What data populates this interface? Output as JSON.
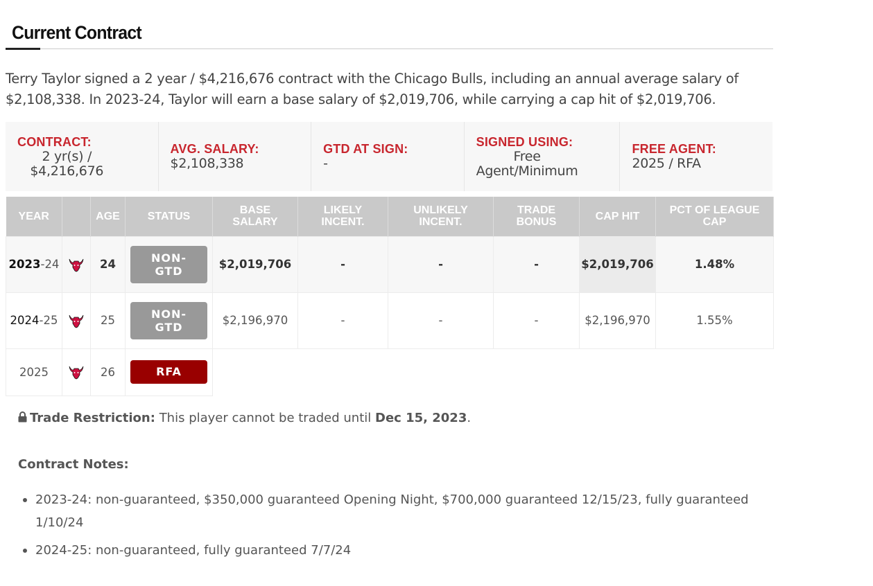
{
  "section": {
    "title": "Current Contract"
  },
  "summary": "Terry Taylor signed a 2 year / $4,216,676 contract with the Chicago Bulls, including an annual average salary of $2,108,338. In 2023-24, Taylor will earn a base salary of $2,019,706, while carrying a cap hit of $2,019,706.",
  "stats": {
    "contract": {
      "label": "CONTRACT:",
      "line1": "2 yr(s) /",
      "line2": "$4,216,676"
    },
    "avg_salary": {
      "label": "AVG. SALARY:",
      "value": "$2,108,338"
    },
    "gtd_at_sign": {
      "label": "GTD AT SIGN:",
      "value": "-"
    },
    "signed_using": {
      "label": "SIGNED USING:",
      "line1": "Free",
      "line2": "Agent/Minimum"
    },
    "free_agent": {
      "label": "FREE AGENT:",
      "value": "2025 / RFA"
    }
  },
  "table": {
    "headers": {
      "year": "YEAR",
      "age": "AGE",
      "status": "STATUS",
      "base_salary": "BASE SALARY",
      "likely_incent": "LIKELY INCENT.",
      "unlikely_incent": "UNLIKELY INCENT.",
      "trade_bonus": "TRADE BONUS",
      "cap_hit": "CAP HIT",
      "pct_cap": "PCT OF LEAGUE CAP"
    },
    "rows": [
      {
        "year_main": "2023",
        "year_sub": "-24",
        "team_icon": "chicago-bulls-logo",
        "age": "24",
        "status_line1": "NON-",
        "status_line2": "GTD",
        "base_salary": "$2,019,706",
        "likely_incent": "-",
        "unlikely_incent": "-",
        "trade_bonus": "-",
        "cap_hit": "$2,019,706",
        "pct_cap": "1.48%"
      },
      {
        "year_main": "2024",
        "year_sub": "-25",
        "team_icon": "chicago-bulls-logo",
        "age": "25",
        "status_line1": "NON-",
        "status_line2": "GTD",
        "base_salary": "$2,196,970",
        "likely_incent": "-",
        "unlikely_incent": "-",
        "trade_bonus": "-",
        "cap_hit": "$2,196,970",
        "pct_cap": "1.55%"
      },
      {
        "year": "2025",
        "team_icon": "chicago-bulls-logo",
        "age": "26",
        "status": "RFA"
      }
    ]
  },
  "restriction": {
    "label": "Trade Restriction:",
    "text": "This player cannot be traded until",
    "date": "Dec 15, 2023",
    "end": "."
  },
  "notes": {
    "title": "Contract Notes:",
    "items": [
      "2023-24: non-guaranteed, $350,000 guaranteed Opening Night, $700,000 guaranteed 12/15/23, fully guaranteed 1/10/24",
      "2024-25: non-guaranteed, fully guaranteed 7/7/24"
    ]
  },
  "colors": {
    "accent_red": "#c8262e",
    "rfa_badge": "#990000",
    "gtd_badge": "#999999",
    "header_bg": "#c9c9c9"
  }
}
